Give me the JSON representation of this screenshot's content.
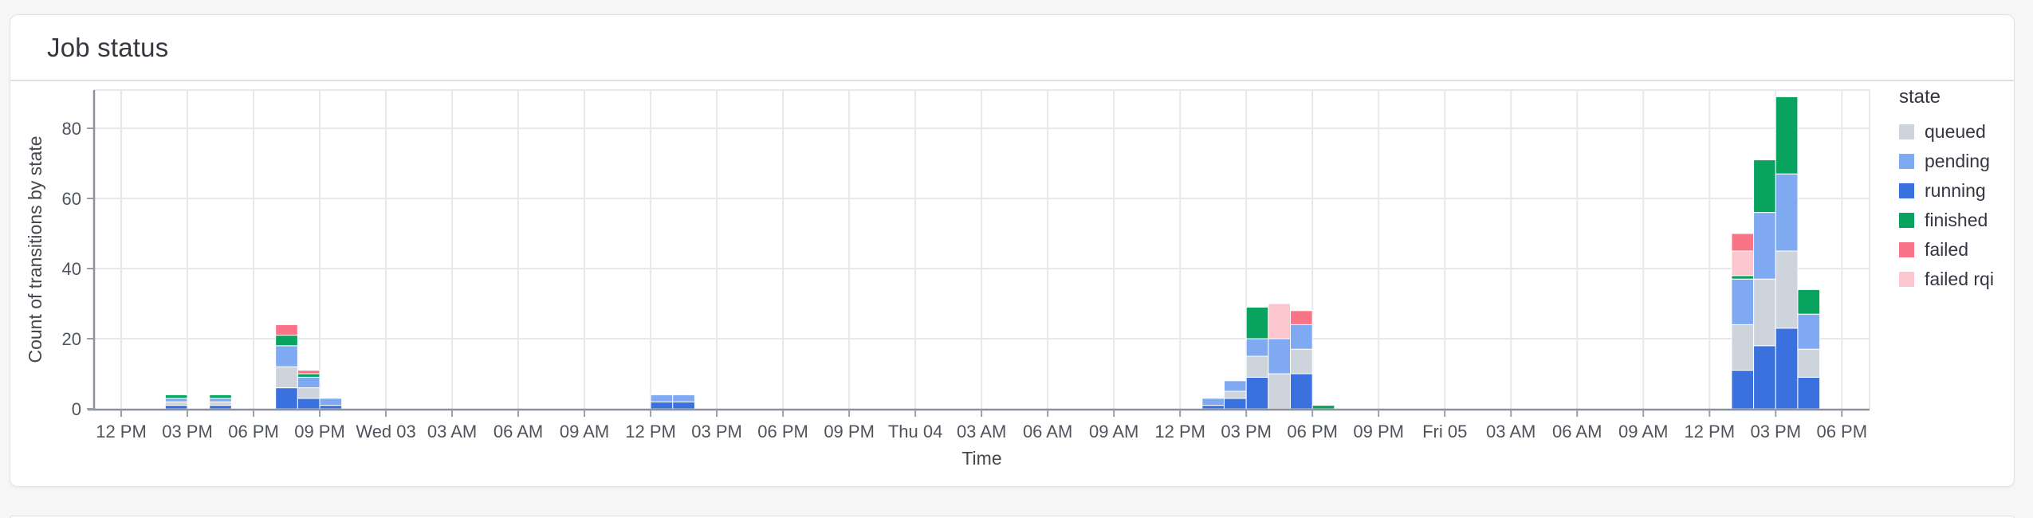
{
  "card": {
    "title": "Job status"
  },
  "chart_data": {
    "type": "bar",
    "stacked": true,
    "title": "Job status",
    "xlabel": "Time",
    "ylabel": "Count of transitions by state",
    "ylim": [
      0,
      90
    ],
    "yticks": [
      0,
      20,
      40,
      60,
      80
    ],
    "grid": true,
    "x_tick_labels": [
      "12 PM",
      "03 PM",
      "06 PM",
      "09 PM",
      "Wed 03",
      "03 AM",
      "06 AM",
      "09 AM",
      "12 PM",
      "03 PM",
      "06 PM",
      "09 PM",
      "Thu 04",
      "03 AM",
      "06 AM",
      "09 AM",
      "12 PM",
      "03 PM",
      "06 PM",
      "09 PM",
      "Fri 05",
      "03 AM",
      "06 AM",
      "09 AM",
      "12 PM",
      "03 PM",
      "06 PM"
    ],
    "legend": {
      "title": "state",
      "position": "right",
      "entries": [
        "queued",
        "pending",
        "running",
        "finished",
        "failed",
        "failed rqi"
      ]
    },
    "colors": {
      "queued": "#ced4dc",
      "pending": "#7fa9f0",
      "running": "#3b71de",
      "finished": "#08a45f",
      "failed": "#f97487",
      "failed rqi": "#fbc6cd"
    },
    "stack_order": [
      "running",
      "queued",
      "pending",
      "finished",
      "failed rqi",
      "failed"
    ],
    "bars": [
      {
        "time": "Tue 02, 2 PM",
        "hour_offset": 2,
        "values": {
          "running": 1,
          "queued": 1,
          "pending": 1,
          "finished": 1
        }
      },
      {
        "time": "Tue 02, 4 PM",
        "hour_offset": 4,
        "values": {
          "running": 1,
          "queued": 1,
          "pending": 1,
          "finished": 1
        }
      },
      {
        "time": "Tue 02, 7 PM",
        "hour_offset": 7,
        "values": {
          "running": 6,
          "queued": 6,
          "pending": 6,
          "finished": 3,
          "failed": 3
        }
      },
      {
        "time": "Tue 02, 8 PM",
        "hour_offset": 8,
        "values": {
          "running": 3,
          "queued": 3,
          "pending": 3,
          "finished": 1,
          "failed": 1
        }
      },
      {
        "time": "Tue 02, 9 PM",
        "hour_offset": 9,
        "values": {
          "running": 1,
          "pending": 2
        }
      },
      {
        "time": "Wed 03, 12 PM",
        "hour_offset": 24,
        "values": {
          "running": 2,
          "pending": 2
        }
      },
      {
        "time": "Wed 03, 1 PM",
        "hour_offset": 25,
        "values": {
          "running": 2,
          "pending": 2
        }
      },
      {
        "time": "Thu 04, 1 PM",
        "hour_offset": 49,
        "values": {
          "running": 1,
          "pending": 2
        }
      },
      {
        "time": "Thu 04, 2 PM",
        "hour_offset": 50,
        "values": {
          "running": 3,
          "queued": 2,
          "pending": 3
        }
      },
      {
        "time": "Thu 04, 3 PM",
        "hour_offset": 51,
        "values": {
          "running": 9,
          "queued": 6,
          "pending": 5,
          "finished": 9
        }
      },
      {
        "time": "Thu 04, 4 PM",
        "hour_offset": 52,
        "values": {
          "queued": 10,
          "pending": 10,
          "failed rqi": 10
        }
      },
      {
        "time": "Thu 04, 5 PM",
        "hour_offset": 53,
        "values": {
          "running": 10,
          "queued": 7,
          "pending": 7,
          "failed": 4
        }
      },
      {
        "time": "Thu 04, 6 PM",
        "hour_offset": 54,
        "values": {
          "finished": 1
        }
      },
      {
        "time": "Fri 05, 1 PM",
        "hour_offset": 73,
        "values": {
          "running": 11,
          "queued": 13,
          "pending": 13,
          "finished": 1,
          "failed rqi": 7,
          "failed": 5
        }
      },
      {
        "time": "Fri 05, 2 PM",
        "hour_offset": 74,
        "values": {
          "running": 18,
          "queued": 19,
          "pending": 19,
          "finished": 15
        }
      },
      {
        "time": "Fri 05, 3 PM",
        "hour_offset": 75,
        "values": {
          "running": 23,
          "queued": 22,
          "pending": 22,
          "finished": 22
        }
      },
      {
        "time": "Fri 05, 4 PM",
        "hour_offset": 76,
        "values": {
          "running": 9,
          "queued": 8,
          "pending": 10,
          "finished": 7
        }
      }
    ]
  }
}
